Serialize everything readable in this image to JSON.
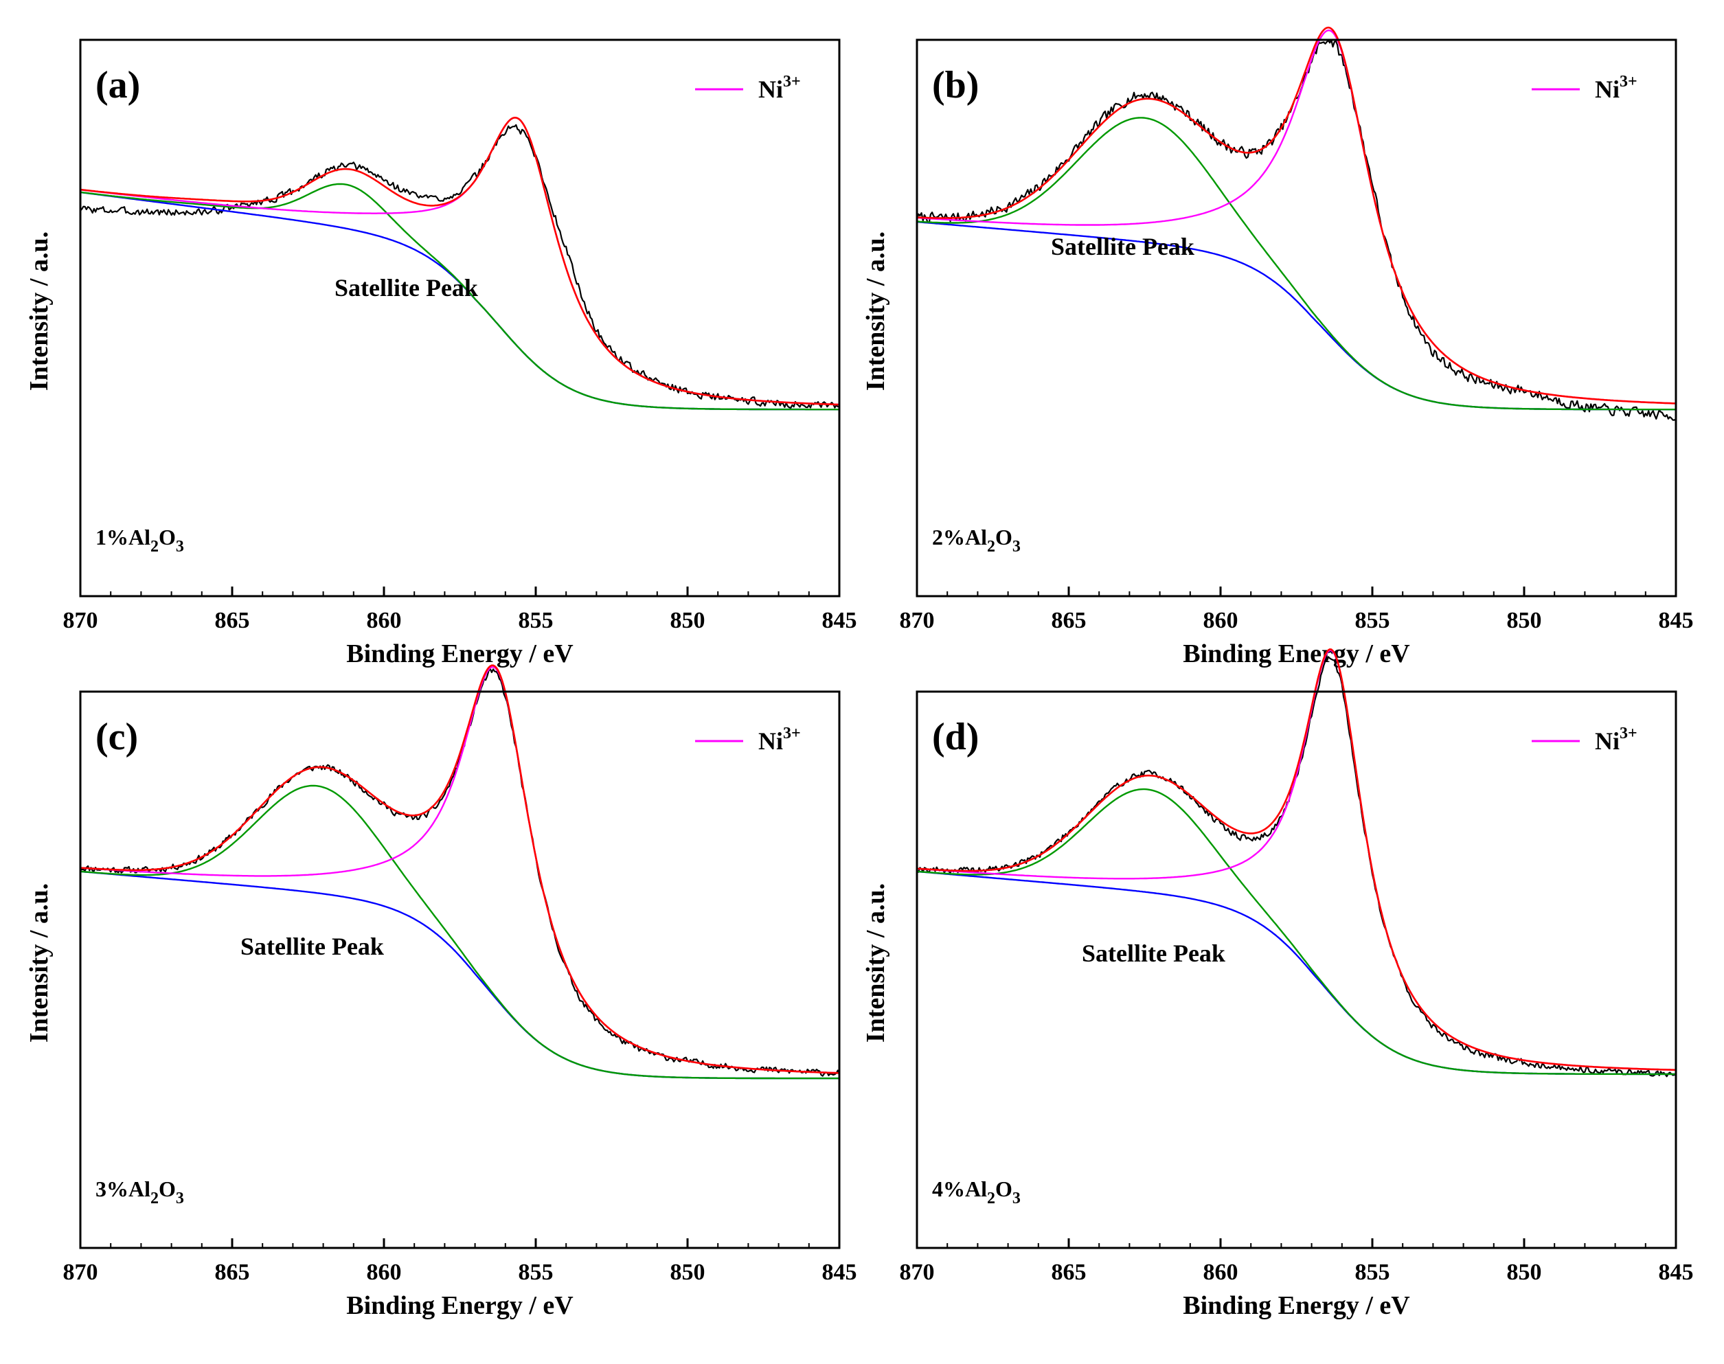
{
  "chart_data": [
    {
      "type": "line",
      "panel": "(a)",
      "sample": {
        "prefix": "1%Al",
        "sub1": "2",
        "mid": "O",
        "sub2": "3"
      },
      "annotation": "Satellite Peak",
      "legend": {
        "base": "Ni",
        "sup": "3+"
      },
      "xlabel": "Binding Energy / eV",
      "ylabel": "Intensity / a.u.",
      "xlim": [
        870,
        845
      ],
      "ylim": [
        0,
        1
      ],
      "xticks": [
        870,
        865,
        860,
        855,
        850,
        845
      ],
      "model": {
        "bg_high": 0.605,
        "bg_low": 0.215,
        "bg_center": 856.2,
        "bg_width": 1.2,
        "bg_slope": 0.009,
        "main_center": 855.5,
        "main_amp": 0.535,
        "main_gamma": 1.55,
        "sat_center": 861.2,
        "sat_amp": 0.1,
        "sat_sigma": 1.25,
        "sat2_center": 864.5,
        "sat2_amp": 0.01,
        "sat2_sigma": 2.0,
        "raw_offsets": [
          [
            870,
            -0.045
          ],
          [
            866,
            -0.03
          ],
          [
            864,
            0.0
          ],
          [
            861.5,
            0.005
          ],
          [
            859,
            0.02
          ],
          [
            857,
            0.01
          ],
          [
            855.5,
            -0.025
          ],
          [
            854,
            0.05
          ],
          [
            853,
            0.01
          ],
          [
            850,
            0.0
          ],
          [
            845,
            -0.005
          ]
        ],
        "noise": 0.008,
        "seed": 3
      },
      "series": [
        {
          "name": "Raw data",
          "color": "#000000"
        },
        {
          "name": "Fitted envelope",
          "color": "#ff0000"
        },
        {
          "name": "Ni3+",
          "color": "#ff00ff"
        },
        {
          "name": "Satellite",
          "color": "#009900"
        },
        {
          "name": "Background",
          "color": "#0000ff"
        }
      ]
    },
    {
      "type": "line",
      "panel": "(b)",
      "sample": {
        "prefix": "2%Al",
        "sub1": "2",
        "mid": "O",
        "sub2": "3"
      },
      "annotation": "Satellite Peak",
      "legend": {
        "base": "Ni",
        "sup": "3+"
      },
      "xlabel": "Binding Energy / eV",
      "ylabel": "Intensity / a.u.",
      "xlim": [
        870,
        845
      ],
      "ylim": [
        0,
        1
      ],
      "xticks": [
        870,
        865,
        860,
        855,
        850,
        845
      ],
      "model": {
        "bg_high": 0.575,
        "bg_low": 0.215,
        "bg_center": 856.5,
        "bg_width": 1.2,
        "bg_slope": 0.006,
        "main_center": 856.3,
        "main_amp": 0.715,
        "main_gamma": 1.6,
        "sat_center": 862.5,
        "sat_amp": 0.29,
        "sat_sigma": 2.2,
        "sat2_center": 858.0,
        "sat2_amp": 0.0,
        "sat2_sigma": 1.5,
        "raw_offsets": [
          [
            870,
            0.0
          ],
          [
            862.5,
            0.01
          ],
          [
            860,
            0.0
          ],
          [
            858,
            0.0
          ],
          [
            856.3,
            -0.03
          ],
          [
            855,
            0.02
          ],
          [
            854.5,
            0.0
          ],
          [
            853,
            -0.02
          ],
          [
            850,
            0.0
          ],
          [
            848,
            -0.02
          ],
          [
            845,
            -0.03
          ]
        ],
        "noise": 0.011,
        "seed": 7
      },
      "series": [
        {
          "name": "Raw data",
          "color": "#000000"
        },
        {
          "name": "Fitted envelope",
          "color": "#ff0000"
        },
        {
          "name": "Ni3+",
          "color": "#ff00ff"
        },
        {
          "name": "Satellite",
          "color": "#009900"
        },
        {
          "name": "Background",
          "color": "#0000ff"
        }
      ]
    },
    {
      "type": "line",
      "panel": "(c)",
      "sample": {
        "prefix": "3%Al",
        "sub1": "2",
        "mid": "O",
        "sub2": "3"
      },
      "annotation": "Satellite Peak",
      "legend": {
        "base": "Ni",
        "sup": "3+"
      },
      "xlabel": "Binding Energy / eV",
      "ylabel": "Intensity / a.u.",
      "xlim": [
        870,
        845
      ],
      "ylim": [
        0,
        1
      ],
      "xticks": [
        870,
        865,
        860,
        855,
        850,
        845
      ],
      "model": {
        "bg_high": 0.58,
        "bg_low": 0.175,
        "bg_center": 856.5,
        "bg_width": 1.2,
        "bg_slope": 0.006,
        "main_center": 856.3,
        "main_amp": 0.77,
        "main_gamma": 1.45,
        "sat_center": 862.2,
        "sat_amp": 0.25,
        "sat_sigma": 2.0,
        "sat2_center": 858.0,
        "sat2_amp": 0.0,
        "sat2_sigma": 1.5,
        "raw_offsets": [
          [
            870,
            0.0
          ],
          [
            862,
            0.0
          ],
          [
            859,
            -0.005
          ],
          [
            856.3,
            -0.015
          ],
          [
            855,
            0.0
          ],
          [
            853.5,
            -0.01
          ],
          [
            850,
            0.0
          ],
          [
            845,
            0.0
          ]
        ],
        "noise": 0.007,
        "seed": 11
      },
      "series": [
        {
          "name": "Raw data",
          "color": "#000000"
        },
        {
          "name": "Fitted envelope",
          "color": "#ff0000"
        },
        {
          "name": "Ni3+",
          "color": "#ff00ff"
        },
        {
          "name": "Satellite",
          "color": "#009900"
        },
        {
          "name": "Background",
          "color": "#0000ff"
        }
      ]
    },
    {
      "type": "line",
      "panel": "(d)",
      "sample": {
        "prefix": "4%Al",
        "sub1": "2",
        "mid": "O",
        "sub2": "3"
      },
      "annotation": "Satellite Peak",
      "legend": {
        "base": "Ni",
        "sup": "3+"
      },
      "xlabel": "Binding Energy / eV",
      "ylabel": "Intensity / a.u.",
      "xlim": [
        870,
        845
      ],
      "ylim": [
        0,
        1
      ],
      "xticks": [
        870,
        865,
        860,
        855,
        850,
        845
      ],
      "model": {
        "bg_high": 0.58,
        "bg_low": 0.185,
        "bg_center": 856.5,
        "bg_width": 1.2,
        "bg_slope": 0.006,
        "main_center": 856.3,
        "main_amp": 0.805,
        "main_gamma": 1.25,
        "sat_center": 862.4,
        "sat_amp": 0.24,
        "sat_sigma": 2.0,
        "sat2_center": 858.0,
        "sat2_amp": 0.0,
        "sat2_sigma": 1.5,
        "raw_offsets": [
          [
            870,
            0.0
          ],
          [
            862,
            0.005
          ],
          [
            860,
            -0.01
          ],
          [
            856.3,
            -0.02
          ],
          [
            854.5,
            0.0
          ],
          [
            853.5,
            -0.01
          ],
          [
            850,
            -0.005
          ],
          [
            845,
            -0.01
          ]
        ],
        "noise": 0.007,
        "seed": 19
      },
      "series": [
        {
          "name": "Raw data",
          "color": "#000000"
        },
        {
          "name": "Fitted envelope",
          "color": "#ff0000"
        },
        {
          "name": "Ni3+",
          "color": "#ff00ff"
        },
        {
          "name": "Satellite",
          "color": "#009900"
        },
        {
          "name": "Background",
          "color": "#0000ff"
        }
      ]
    }
  ]
}
